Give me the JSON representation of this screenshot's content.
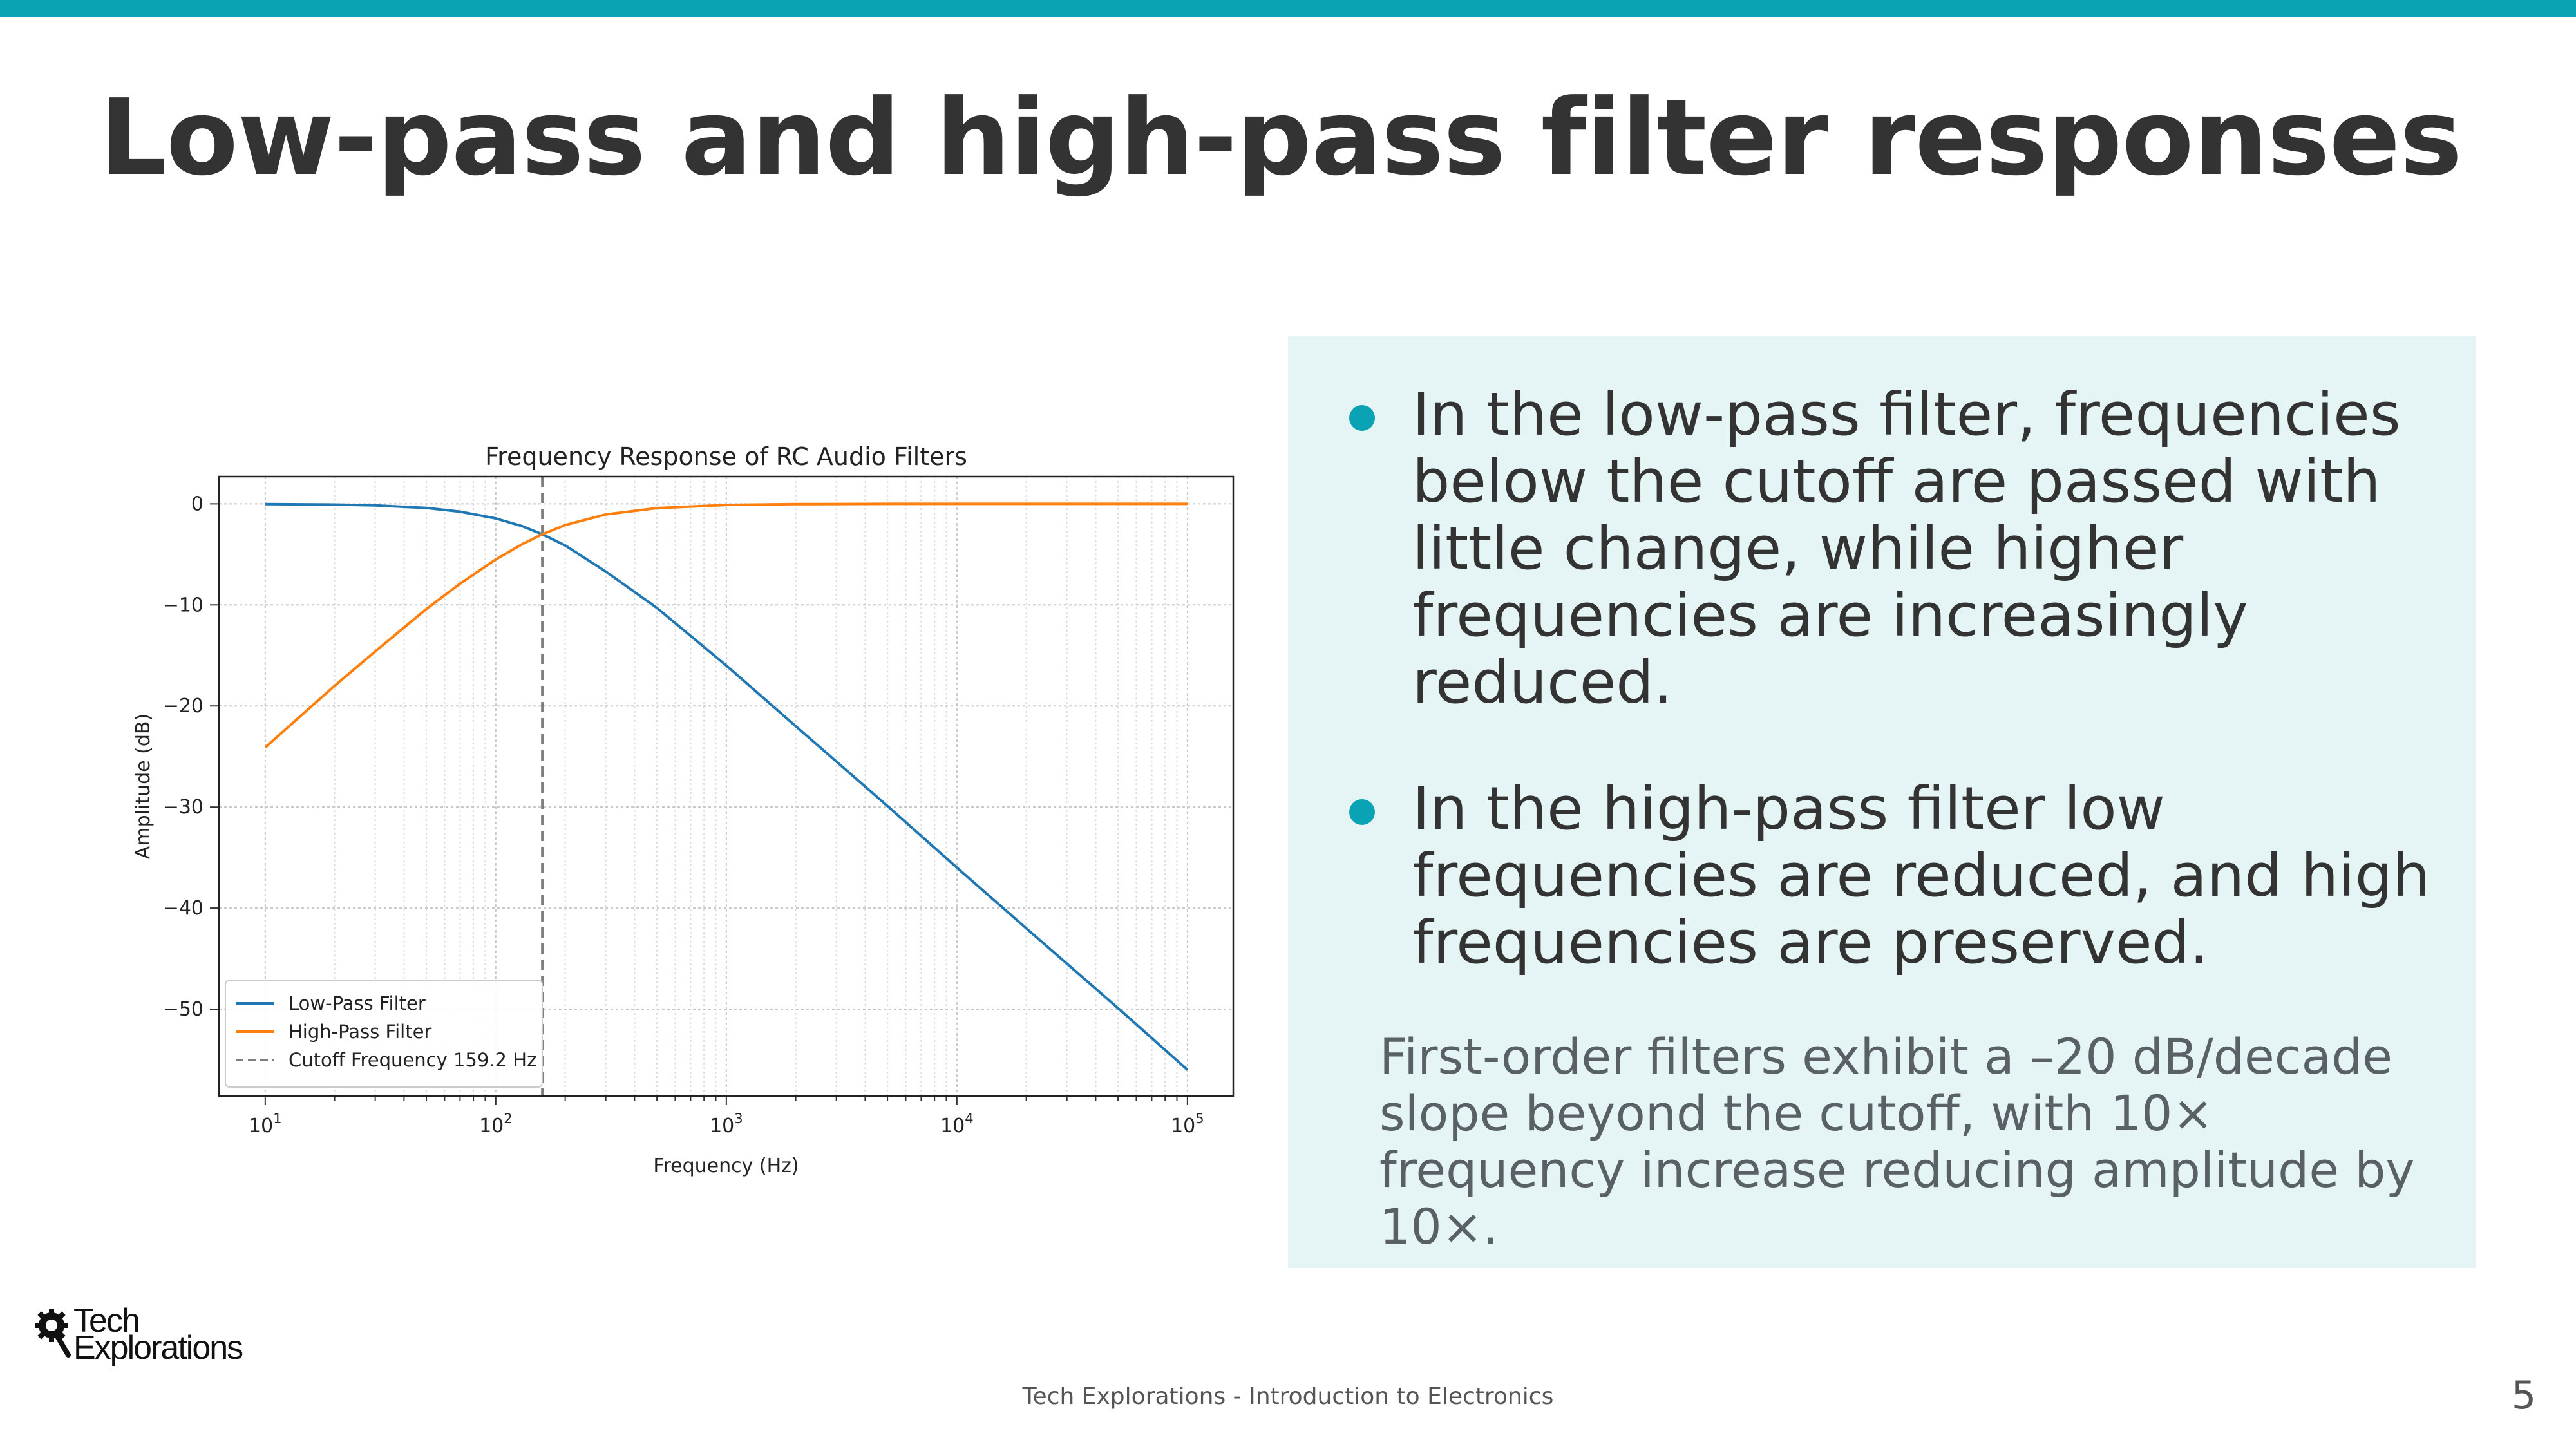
{
  "slide": {
    "title": "Low-pass and high-pass filter responses",
    "accent_color": "#0aa3b5",
    "panel_color": "#e5f5f5"
  },
  "panel": {
    "bullets": [
      "In the low-pass filter, frequencies below the cutoff are passed with little change, while higher frequencies are increasingly reduced.",
      "In the high-pass filter low frequencies are reduced, and high frequencies are preserved."
    ],
    "note": "First-order filters exhibit a –20 dB/decade slope beyond the cutoff, with 10× frequency increase reducing amplitude by 10×."
  },
  "logo": {
    "line1": "Tech",
    "line2": "Explorations",
    "icon": "gear-magnifier-icon"
  },
  "footer": {
    "text": "Tech Explorations - Introduction to Electronics",
    "page_number": "5"
  },
  "chart_data": {
    "type": "line",
    "title": "Frequency Response of RC Audio Filters",
    "xlabel": "Frequency (Hz)",
    "ylabel": "Amplitude (dB)",
    "x_scale": "log",
    "xlim": [
      10,
      100000
    ],
    "ylim": [
      -56,
      0
    ],
    "x_ticks": [
      {
        "value": 10,
        "base": "10",
        "exp": "1"
      },
      {
        "value": 100,
        "base": "10",
        "exp": "2"
      },
      {
        "value": 1000,
        "base": "10",
        "exp": "3"
      },
      {
        "value": 10000,
        "base": "10",
        "exp": "4"
      },
      {
        "value": 100000,
        "base": "10",
        "exp": "5"
      }
    ],
    "y_ticks": [
      {
        "value": 0,
        "label": "0"
      },
      {
        "value": -10,
        "label": "−10"
      },
      {
        "value": -20,
        "label": "−20"
      },
      {
        "value": -30,
        "label": "−30"
      },
      {
        "value": -40,
        "label": "−40"
      },
      {
        "value": -50,
        "label": "−50"
      }
    ],
    "grid": true,
    "legend_position": "lower-left",
    "series": [
      {
        "name": "Low-Pass Filter",
        "color": "#1f77b4",
        "x": [
          10,
          20,
          30,
          50,
          70,
          100,
          130,
          159.2,
          200,
          300,
          500,
          1000,
          2000,
          5000,
          10000,
          20000,
          50000,
          100000
        ],
        "y": [
          -0.02,
          -0.07,
          -0.15,
          -0.41,
          -0.77,
          -1.44,
          -2.2,
          -3.01,
          -4.11,
          -6.7,
          -10.3,
          -16.0,
          -22.0,
          -29.9,
          -36.0,
          -42.0,
          -49.9,
          -56.0
        ]
      },
      {
        "name": "High-Pass Filter",
        "color": "#ff7f0e",
        "x": [
          10,
          20,
          30,
          50,
          70,
          100,
          130,
          159.2,
          200,
          300,
          500,
          1000,
          2000,
          5000,
          10000,
          100000
        ],
        "y": [
          -24.1,
          -18.0,
          -14.6,
          -10.4,
          -7.9,
          -5.5,
          -4.0,
          -3.01,
          -2.1,
          -1.05,
          -0.42,
          -0.11,
          -0.03,
          0,
          0,
          0
        ]
      }
    ],
    "cutoff": {
      "name": "Cutoff Frequency 159.2 Hz",
      "x": 159.2,
      "color": "#7f7f7f"
    }
  }
}
